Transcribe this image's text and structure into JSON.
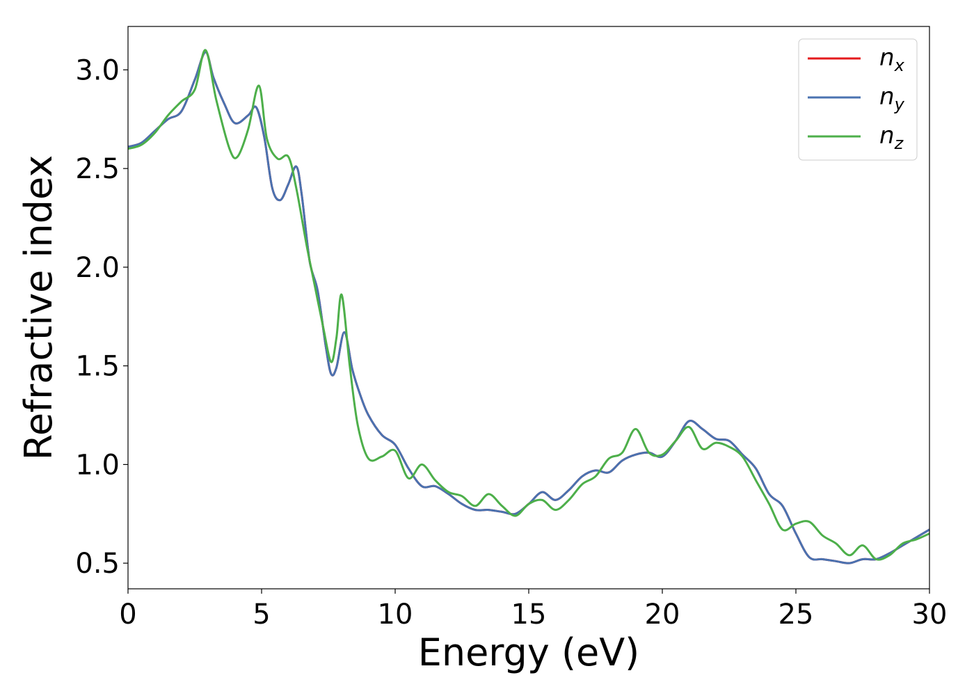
{
  "chart_data": {
    "type": "line",
    "xlabel": "Energy (eV)",
    "ylabel": "Refractive index",
    "xlim": [
      0,
      30
    ],
    "ylim": [
      0.37,
      3.22
    ],
    "xticks": [
      0,
      5,
      10,
      15,
      20,
      25,
      30
    ],
    "xtick_labels": [
      "0",
      "5",
      "10",
      "15",
      "20",
      "25",
      "30"
    ],
    "yticks": [
      0.5,
      1.0,
      1.5,
      2.0,
      2.5,
      3.0
    ],
    "ytick_labels": [
      "0.5",
      "1.0",
      "1.5",
      "2.0",
      "2.5",
      "3.0"
    ],
    "grid": false,
    "legend_position": "top-right",
    "series": [
      {
        "name": "x",
        "color": "#e41a1c",
        "x": [
          0,
          0.5,
          1,
          1.5,
          2,
          2.5,
          2.9,
          3.2,
          3.6,
          4,
          4.5,
          4.8,
          5.1,
          5.4,
          5.7,
          6,
          6.3,
          6.5,
          6.8,
          7.1,
          7.4,
          7.6,
          7.8,
          8.1,
          8.4,
          8.7,
          9,
          9.5,
          10,
          10.5,
          11,
          11.5,
          12,
          12.5,
          13,
          13.5,
          14,
          14.5,
          15,
          15.5,
          16,
          16.5,
          17,
          17.5,
          18,
          18.5,
          19,
          19.5,
          20,
          20.5,
          21,
          21.5,
          22,
          22.5,
          23,
          23.5,
          24,
          24.5,
          25,
          25.5,
          26,
          26.5,
          27,
          27.5,
          28,
          28.5,
          29,
          29.5,
          30
        ],
        "y": [
          2.61,
          2.63,
          2.69,
          2.75,
          2.79,
          2.95,
          3.09,
          2.96,
          2.83,
          2.73,
          2.77,
          2.81,
          2.66,
          2.4,
          2.34,
          2.42,
          2.51,
          2.37,
          2.03,
          1.88,
          1.6,
          1.46,
          1.49,
          1.67,
          1.48,
          1.35,
          1.25,
          1.15,
          1.1,
          0.98,
          0.89,
          0.89,
          0.85,
          0.8,
          0.77,
          0.77,
          0.76,
          0.75,
          0.8,
          0.86,
          0.82,
          0.87,
          0.94,
          0.97,
          0.96,
          1.02,
          1.05,
          1.06,
          1.04,
          1.12,
          1.22,
          1.18,
          1.13,
          1.12,
          1.05,
          0.98,
          0.85,
          0.79,
          0.65,
          0.53,
          0.52,
          0.51,
          0.5,
          0.52,
          0.52,
          0.55,
          0.59,
          0.63,
          0.67
        ]
      },
      {
        "name": "y",
        "color": "#4a72b0",
        "x": [
          0,
          0.5,
          1,
          1.5,
          2,
          2.5,
          2.9,
          3.2,
          3.6,
          4,
          4.5,
          4.8,
          5.1,
          5.4,
          5.7,
          6,
          6.3,
          6.5,
          6.8,
          7.1,
          7.4,
          7.6,
          7.8,
          8.1,
          8.4,
          8.7,
          9,
          9.5,
          10,
          10.5,
          11,
          11.5,
          12,
          12.5,
          13,
          13.5,
          14,
          14.5,
          15,
          15.5,
          16,
          16.5,
          17,
          17.5,
          18,
          18.5,
          19,
          19.5,
          20,
          20.5,
          21,
          21.5,
          22,
          22.5,
          23,
          23.5,
          24,
          24.5,
          25,
          25.5,
          26,
          26.5,
          27,
          27.5,
          28,
          28.5,
          29,
          29.5,
          30
        ],
        "y": [
          2.61,
          2.63,
          2.69,
          2.75,
          2.79,
          2.95,
          3.09,
          2.96,
          2.83,
          2.73,
          2.77,
          2.81,
          2.66,
          2.4,
          2.34,
          2.42,
          2.51,
          2.37,
          2.03,
          1.88,
          1.6,
          1.46,
          1.49,
          1.67,
          1.48,
          1.35,
          1.25,
          1.15,
          1.1,
          0.98,
          0.89,
          0.89,
          0.85,
          0.8,
          0.77,
          0.77,
          0.76,
          0.75,
          0.8,
          0.86,
          0.82,
          0.87,
          0.94,
          0.97,
          0.96,
          1.02,
          1.05,
          1.06,
          1.04,
          1.12,
          1.22,
          1.18,
          1.13,
          1.12,
          1.05,
          0.98,
          0.85,
          0.79,
          0.65,
          0.53,
          0.52,
          0.51,
          0.5,
          0.52,
          0.52,
          0.55,
          0.59,
          0.63,
          0.67
        ]
      },
      {
        "name": "z",
        "color": "#4daf4a",
        "x": [
          0,
          0.5,
          1,
          1.5,
          2,
          2.5,
          2.9,
          3.3,
          3.8,
          4.1,
          4.5,
          4.9,
          5.2,
          5.6,
          6,
          6.3,
          6.7,
          7,
          7.3,
          7.6,
          7.8,
          8,
          8.3,
          8.6,
          9,
          9.5,
          10,
          10.5,
          11,
          11.5,
          12,
          12.5,
          13,
          13.5,
          14,
          14.5,
          15,
          15.5,
          16,
          16.5,
          17,
          17.5,
          18,
          18.5,
          19,
          19.5,
          20,
          20.5,
          21,
          21.5,
          22,
          22.5,
          23,
          23.5,
          24,
          24.5,
          25,
          25.5,
          26,
          26.5,
          27,
          27.5,
          28,
          28.5,
          29,
          29.5,
          30
        ],
        "y": [
          2.6,
          2.62,
          2.68,
          2.77,
          2.84,
          2.9,
          3.1,
          2.85,
          2.6,
          2.56,
          2.7,
          2.92,
          2.65,
          2.55,
          2.56,
          2.4,
          2.1,
          1.9,
          1.7,
          1.52,
          1.64,
          1.86,
          1.5,
          1.2,
          1.03,
          1.04,
          1.07,
          0.93,
          1.0,
          0.92,
          0.86,
          0.84,
          0.79,
          0.85,
          0.79,
          0.74,
          0.8,
          0.82,
          0.77,
          0.82,
          0.9,
          0.94,
          1.03,
          1.06,
          1.18,
          1.06,
          1.05,
          1.12,
          1.19,
          1.08,
          1.11,
          1.09,
          1.04,
          0.92,
          0.8,
          0.67,
          0.7,
          0.71,
          0.64,
          0.6,
          0.54,
          0.59,
          0.52,
          0.54,
          0.6,
          0.62,
          0.65
        ]
      }
    ]
  }
}
